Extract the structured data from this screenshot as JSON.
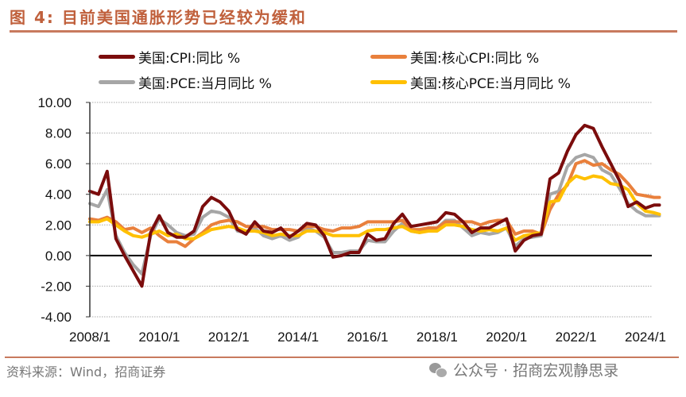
{
  "header": {
    "title": "图 4:  目前美国通胀形势已经较为缓和"
  },
  "footer": {
    "source": "资料来源：Wind，招商证券",
    "watermark": "公众号 · 招商宏观静思录",
    "watermark_icon": "wechat-icon"
  },
  "chart_data": {
    "type": "line",
    "title": "图 4:  目前美国通胀形势已经较为缓和",
    "xlabel": "",
    "ylabel": "",
    "ylim": [
      -4,
      10
    ],
    "yticks": [
      "10.00",
      "8.00",
      "6.00",
      "4.00",
      "2.00",
      "0.00",
      "-2.00",
      "-4.00"
    ],
    "ytick_values": [
      10,
      8,
      6,
      4,
      2,
      0,
      -2,
      -4
    ],
    "xlim": [
      2008.0,
      2024.5
    ],
    "xticks": [
      "2008/1",
      "2010/1",
      "2012/1",
      "2014/1",
      "2016/1",
      "2018/1",
      "2020/1",
      "2022/1",
      "2024/1"
    ],
    "xtick_values": [
      2008,
      2010,
      2012,
      2014,
      2016,
      2018,
      2020,
      2022,
      2024
    ],
    "grid": true,
    "legend_position": "top",
    "x": [
      2008.0,
      2008.25,
      2008.5,
      2008.75,
      2009.0,
      2009.25,
      2009.5,
      2009.75,
      2010.0,
      2010.25,
      2010.5,
      2010.75,
      2011.0,
      2011.25,
      2011.5,
      2011.75,
      2012.0,
      2012.25,
      2012.5,
      2012.75,
      2013.0,
      2013.25,
      2013.5,
      2013.75,
      2014.0,
      2014.25,
      2014.5,
      2014.75,
      2015.0,
      2015.25,
      2015.5,
      2015.75,
      2016.0,
      2016.25,
      2016.5,
      2016.75,
      2017.0,
      2017.25,
      2017.5,
      2017.75,
      2018.0,
      2018.25,
      2018.5,
      2018.75,
      2019.0,
      2019.25,
      2019.5,
      2019.75,
      2020.0,
      2020.25,
      2020.5,
      2020.75,
      2021.0,
      2021.25,
      2021.5,
      2021.75,
      2022.0,
      2022.25,
      2022.5,
      2022.75,
      2023.0,
      2023.25,
      2023.5,
      2023.75,
      2024.0,
      2024.25,
      2024.4
    ],
    "series": [
      {
        "name": "美国:CPI:同比 %",
        "color": "#7b0c0c",
        "values": [
          4.2,
          4.0,
          5.5,
          1.1,
          0.0,
          -1.0,
          -2.0,
          1.5,
          2.6,
          1.5,
          1.2,
          1.2,
          1.6,
          3.2,
          3.8,
          3.5,
          2.9,
          1.7,
          1.4,
          2.2,
          1.6,
          1.5,
          1.8,
          1.2,
          1.6,
          2.1,
          2.0,
          1.3,
          -0.1,
          0.0,
          0.2,
          0.2,
          1.4,
          1.0,
          1.1,
          2.1,
          2.7,
          1.9,
          2.0,
          2.1,
          2.2,
          2.8,
          2.7,
          2.2,
          1.5,
          1.8,
          1.8,
          2.1,
          2.4,
          0.3,
          1.0,
          1.3,
          1.4,
          5.0,
          5.4,
          6.8,
          7.9,
          8.5,
          8.3,
          7.1,
          6.0,
          4.9,
          3.2,
          3.5,
          3.1,
          3.3,
          3.3
        ]
      },
      {
        "name": "美国:核心CPI:同比 %",
        "color": "#e9803c",
        "values": [
          2.4,
          2.3,
          2.5,
          2.2,
          1.7,
          1.8,
          1.5,
          1.8,
          1.3,
          0.9,
          0.9,
          0.6,
          1.1,
          1.5,
          2.0,
          2.2,
          2.3,
          2.2,
          1.9,
          1.9,
          1.9,
          1.7,
          1.7,
          1.7,
          1.6,
          1.9,
          1.9,
          1.7,
          1.6,
          1.8,
          1.8,
          1.9,
          2.2,
          2.2,
          2.2,
          2.2,
          2.3,
          1.7,
          1.7,
          1.8,
          1.8,
          2.2,
          2.2,
          2.2,
          2.2,
          2.0,
          2.2,
          2.3,
          2.3,
          1.4,
          1.6,
          1.6,
          1.4,
          3.0,
          4.0,
          4.6,
          6.0,
          6.2,
          5.9,
          6.0,
          5.6,
          5.3,
          4.7,
          4.0,
          3.9,
          3.8,
          3.8
        ]
      },
      {
        "name": "美国:PCE:当月同比 %",
        "color": "#a6a6a6",
        "values": [
          3.4,
          3.2,
          4.3,
          1.3,
          0.2,
          -0.6,
          -1.2,
          1.3,
          2.4,
          2.0,
          1.5,
          1.3,
          1.4,
          2.5,
          2.9,
          2.8,
          2.5,
          1.6,
          1.5,
          1.8,
          1.3,
          1.1,
          1.3,
          1.0,
          1.2,
          1.8,
          1.6,
          1.2,
          0.2,
          0.2,
          0.3,
          0.3,
          1.0,
          0.9,
          0.9,
          1.6,
          2.1,
          1.6,
          1.5,
          1.8,
          1.8,
          2.3,
          2.3,
          1.8,
          1.3,
          1.5,
          1.4,
          1.5,
          1.8,
          0.6,
          1.1,
          1.2,
          1.3,
          4.0,
          4.2,
          5.8,
          6.4,
          6.6,
          6.4,
          5.6,
          5.3,
          4.4,
          3.4,
          2.9,
          2.6,
          2.6,
          2.6
        ]
      },
      {
        "name": "美国:核心PCE:当月同比 %",
        "color": "#ffc000",
        "values": [
          2.2,
          2.2,
          2.4,
          2.0,
          1.6,
          1.3,
          1.2,
          1.4,
          1.6,
          1.3,
          1.4,
          1.1,
          1.1,
          1.4,
          1.7,
          1.8,
          1.9,
          1.8,
          1.6,
          1.6,
          1.5,
          1.3,
          1.4,
          1.3,
          1.3,
          1.6,
          1.6,
          1.5,
          1.3,
          1.3,
          1.3,
          1.3,
          1.6,
          1.7,
          1.7,
          1.8,
          1.9,
          1.6,
          1.5,
          1.6,
          1.6,
          2.0,
          2.0,
          1.9,
          1.7,
          1.6,
          1.7,
          1.6,
          1.8,
          1.0,
          1.3,
          1.4,
          1.5,
          3.5,
          3.6,
          4.7,
          5.2,
          5.0,
          5.2,
          5.1,
          4.7,
          4.6,
          4.3,
          3.4,
          2.9,
          2.8,
          2.7
        ]
      }
    ]
  }
}
